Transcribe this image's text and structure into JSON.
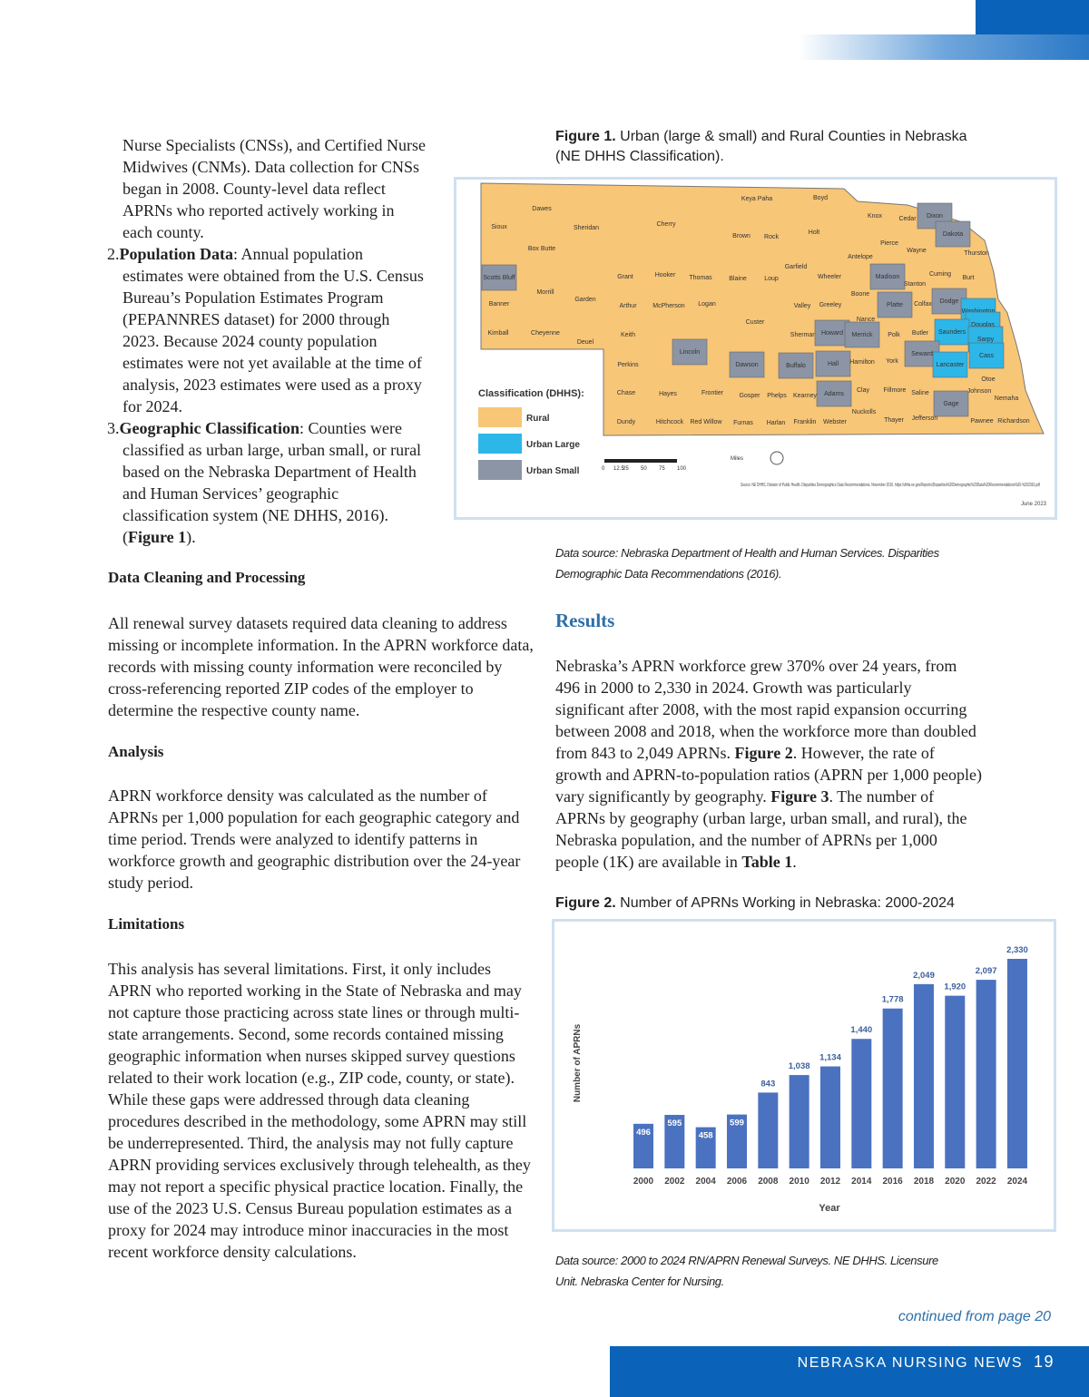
{
  "left": {
    "intro": "Nurse Specialists (CNSs), and Certified Nurse Midwives (CNMs). Data collection for CNSs began in 2008. County-level data reflect APRNs who reported actively working in each county.",
    "items": [
      {
        "number": "2.",
        "term": "Population Data",
        "text": ": Annual population estimates were obtained from the U.S. Census Bureau’s Population Estimates Program (PEPANNRES dataset) for 2000 through 2023. Because 2024 county population estimates were not yet available at the time of analysis, 2023 estimates were used as a proxy for 2024."
      },
      {
        "number": "3.",
        "term": "Geographic Classification",
        "text": ": Counties were classified as urban large, urban small, or rural based on the Nebraska Department of Health and Human Services’ geographic classification system (NE DHHS, 2016). (",
        "ref": "Figure 1",
        "end": ")."
      }
    ],
    "sections": [
      {
        "heading": "Data Cleaning and Processing",
        "text": "All renewal survey datasets required data cleaning to address missing or incomplete information. In the APRN workforce data, records with missing county information were reconciled by cross-referencing reported ZIP codes of the employer to determine the respective county name."
      },
      {
        "heading": "Analysis",
        "text": "APRN workforce density was calculated as the number of APRNs per 1,000 population for each geographic category and time period. Trends were analyzed to identify patterns in workforce growth and geographic distribution over the 24-year study period."
      },
      {
        "heading": "Limitations",
        "text": "This analysis has several limitations. First, it only includes APRN who reported working in the State of Nebraska and may not capture those practicing across state lines or through multi-state arrangements. Second, some records contained missing geographic information when nurses skipped survey questions related to their work location (e.g., ZIP code, county, or state). While these gaps were addressed through data cleaning procedures described in the methodology, some APRN may still be underrepresented. Third, the analysis may not fully capture APRN providing services exclusively through telehealth, as they may not report a specific physical practice location. Finally, the use of the 2023 U.S. Census Bureau population estimates as a proxy for 2024 may introduce minor inaccuracies in the most recent workforce density calculations."
      }
    ]
  },
  "figure1": {
    "label": "Figure 1.",
    "title": " Urban (large & small) and Rural Counties in Nebraska (NE DHHS Classification).",
    "caption": "Data source: Nebraska Department of Health and Human Services. Disparities Demographic Data Recommendations (2016).",
    "map": {
      "legend_title": "Classification (DHHS):",
      "legend": [
        {
          "name": "Rural",
          "color": "#f8c677"
        },
        {
          "name": "Urban Large",
          "color": "#2db6e8"
        },
        {
          "name": "Urban Small",
          "color": "#8c95a5"
        }
      ],
      "scale_unit": "Miles",
      "scale_ticks": [
        "0",
        "12.5",
        "25",
        "50",
        "75",
        "100"
      ],
      "source": "Source: NE DHHS. Division of Public Health. Disparities Demographics Data Recommendations. November 2016. https://dhhs.ne.gov/Reports/Disparities%20Demographic%20Data%20Recommendations%20-%202016.pdf",
      "date": "June 2023",
      "counties": [
        {
          "name": "Sioux",
          "class": 0
        },
        {
          "name": "Dawes",
          "class": 0
        },
        {
          "name": "Sheridan",
          "class": 0
        },
        {
          "name": "Cherry",
          "class": 0
        },
        {
          "name": "Keya Paha",
          "class": 0
        },
        {
          "name": "Boyd",
          "class": 0
        },
        {
          "name": "Knox",
          "class": 0
        },
        {
          "name": "Cedar",
          "class": 0
        },
        {
          "name": "Dixon",
          "class": 2
        },
        {
          "name": "Dakota",
          "class": 2
        },
        {
          "name": "Thurston",
          "class": 0
        },
        {
          "name": "Box Butte",
          "class": 0
        },
        {
          "name": "Brown",
          "class": 0
        },
        {
          "name": "Rock",
          "class": 0
        },
        {
          "name": "Holt",
          "class": 0
        },
        {
          "name": "Pierce",
          "class": 0
        },
        {
          "name": "Antelope",
          "class": 0
        },
        {
          "name": "Wayne",
          "class": 0
        },
        {
          "name": "Scotts Bluff",
          "class": 2
        },
        {
          "name": "Grant",
          "class": 0
        },
        {
          "name": "Hooker",
          "class": 0
        },
        {
          "name": "Thomas",
          "class": 0
        },
        {
          "name": "Blaine",
          "class": 0
        },
        {
          "name": "Loup",
          "class": 0
        },
        {
          "name": "Garfield",
          "class": 0
        },
        {
          "name": "Wheeler",
          "class": 0
        },
        {
          "name": "Madison",
          "class": 2
        },
        {
          "name": "Stanton",
          "class": 0
        },
        {
          "name": "Cuming",
          "class": 0
        },
        {
          "name": "Burt",
          "class": 0
        },
        {
          "name": "Morrill",
          "class": 0
        },
        {
          "name": "Garden",
          "class": 0
        },
        {
          "name": "Banner",
          "class": 0
        },
        {
          "name": "Arthur",
          "class": 0
        },
        {
          "name": "McPherson",
          "class": 0
        },
        {
          "name": "Logan",
          "class": 0
        },
        {
          "name": "Boone",
          "class": 0
        },
        {
          "name": "Platte",
          "class": 2
        },
        {
          "name": "Colfax",
          "class": 0
        },
        {
          "name": "Dodge",
          "class": 2
        },
        {
          "name": "Washington",
          "class": 1
        },
        {
          "name": "Valley",
          "class": 0
        },
        {
          "name": "Greeley",
          "class": 0
        },
        {
          "name": "Custer",
          "class": 0
        },
        {
          "name": "Nance",
          "class": 0
        },
        {
          "name": "Douglas",
          "class": 1
        },
        {
          "name": "Kimball",
          "class": 0
        },
        {
          "name": "Cheyenne",
          "class": 0
        },
        {
          "name": "Deuel",
          "class": 0
        },
        {
          "name": "Keith",
          "class": 0
        },
        {
          "name": "Sherman",
          "class": 0
        },
        {
          "name": "Howard",
          "class": 2
        },
        {
          "name": "Merrick",
          "class": 2
        },
        {
          "name": "Polk",
          "class": 0
        },
        {
          "name": "Butler",
          "class": 0
        },
        {
          "name": "Saunders",
          "class": 1
        },
        {
          "name": "Sarpy",
          "class": 1
        },
        {
          "name": "Lincoln",
          "class": 2
        },
        {
          "name": "Seward",
          "class": 2
        },
        {
          "name": "Dawson",
          "class": 2
        },
        {
          "name": "Buffalo",
          "class": 2
        },
        {
          "name": "Hall",
          "class": 2
        },
        {
          "name": "Hamilton",
          "class": 0
        },
        {
          "name": "York",
          "class": 0
        },
        {
          "name": "Lancaster",
          "class": 1
        },
        {
          "name": "Cass",
          "class": 1
        },
        {
          "name": "Perkins",
          "class": 0
        },
        {
          "name": "Otoe",
          "class": 0
        },
        {
          "name": "Chase",
          "class": 0
        },
        {
          "name": "Hayes",
          "class": 0
        },
        {
          "name": "Frontier",
          "class": 0
        },
        {
          "name": "Gosper",
          "class": 0
        },
        {
          "name": "Phelps",
          "class": 0
        },
        {
          "name": "Kearney",
          "class": 0
        },
        {
          "name": "Adams",
          "class": 2
        },
        {
          "name": "Clay",
          "class": 0
        },
        {
          "name": "Fillmore",
          "class": 0
        },
        {
          "name": "Saline",
          "class": 0
        },
        {
          "name": "Johnson",
          "class": 0
        },
        {
          "name": "Gage",
          "class": 2
        },
        {
          "name": "Nemaha",
          "class": 0
        },
        {
          "name": "Nuckolls",
          "class": 0
        },
        {
          "name": "Dundy",
          "class": 0
        },
        {
          "name": "Hitchcock",
          "class": 0
        },
        {
          "name": "Red Willow",
          "class": 0
        },
        {
          "name": "Furnas",
          "class": 0
        },
        {
          "name": "Harlan",
          "class": 0
        },
        {
          "name": "Franklin",
          "class": 0
        },
        {
          "name": "Webster",
          "class": 0
        },
        {
          "name": "Thayer",
          "class": 0
        },
        {
          "name": "Jefferson",
          "class": 0
        },
        {
          "name": "Pawnee",
          "class": 0
        },
        {
          "name": "Richardson",
          "class": 0
        }
      ]
    }
  },
  "results": {
    "heading": "Results",
    "paragraph": [
      "Nebraska’s APRN workforce grew 370% over 24 years, from 496 in 2000 to 2,330 in 2024. Growth was particularly significant after 2008, with the most rapid expansion occurring between 2008 and 2018, when the workforce more than doubled from 843 to 2,049 APRNs. ",
      "Figure 2",
      ". However, the rate of growth and APRN-to-population ratios (APRN per 1,000 people) vary significantly by geography. ",
      "Figure 3",
      ". The number of APRNs by geography (urban large, urban small, and rural), the Nebraska population, and the number of APRNs per 1,000 people (1K) are available in ",
      "Table 1",
      "."
    ]
  },
  "chart_data": {
    "type": "bar",
    "label": "Figure 2.",
    "title": " Number of APRNs Working in Nebraska: 2000-2024",
    "x_label": "Year",
    "y_label": "Number of APRNs",
    "categories": [
      "2000",
      "2002",
      "2004",
      "2006",
      "2008",
      "2010",
      "2012",
      "2014",
      "2016",
      "2018",
      "2020",
      "2022",
      "2024"
    ],
    "values": [
      496,
      595,
      458,
      599,
      843,
      1038,
      1134,
      1440,
      1778,
      2049,
      1920,
      2097,
      2330
    ],
    "value_labels": [
      "496",
      "595",
      "458",
      "599",
      "843",
      "1,038",
      "1,134",
      "1,440",
      "1,778",
      "2,049",
      "1,920",
      "2,097",
      "2,330"
    ],
    "color": "#4a72c0",
    "caption": "Data source: 2000 to 2024 RN/APRN Renewal Surveys. NE DHHS. Licensure Unit. Nebraska Center for Nursing."
  },
  "footer": {
    "continued": "continued from page 20",
    "publication": "NEBRASKA NURSING NEWS",
    "page": "19"
  }
}
